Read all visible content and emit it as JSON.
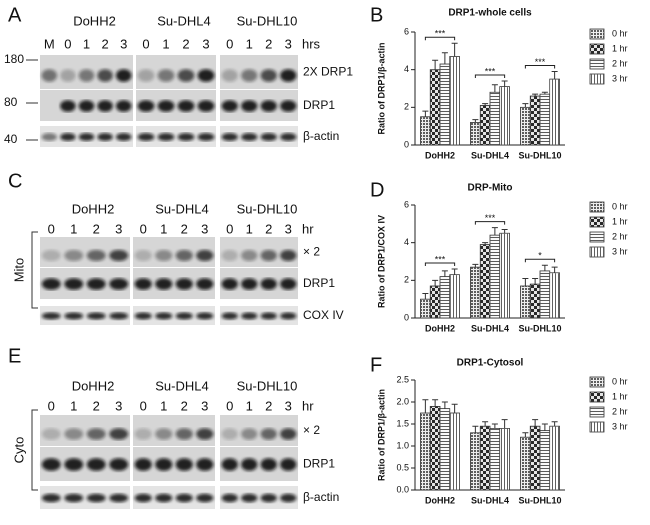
{
  "blots": [
    {
      "label": "A",
      "cell_lines": [
        "DoHH2",
        "Su-DHL4",
        "Su-DHL10"
      ],
      "lanes": [
        [
          "M",
          "0",
          "1",
          "2",
          "3"
        ],
        [
          "0",
          "1",
          "2",
          "3"
        ],
        [
          "0",
          "1",
          "2",
          "3"
        ]
      ],
      "unit": "hrs",
      "markers": [
        "180",
        "80",
        "40"
      ],
      "bands": [
        "2X DRP1",
        "DRP1",
        "β-actin"
      ]
    },
    {
      "label": "C",
      "cell_lines": [
        "DoHH2",
        "Su-DHL4",
        "Su-DHL10"
      ],
      "lanes": [
        [
          "0",
          "1",
          "2",
          "3"
        ],
        [
          "0",
          "1",
          "2",
          "3"
        ],
        [
          "0",
          "1",
          "2",
          "3"
        ]
      ],
      "unit": "hr",
      "fraction": "Mito",
      "bands": [
        "× 2",
        "DRP1",
        "COX IV"
      ]
    },
    {
      "label": "E",
      "cell_lines": [
        "DoHH2",
        "Su-DHL4",
        "Su-DHL10"
      ],
      "lanes": [
        [
          "0",
          "1",
          "2",
          "3"
        ],
        [
          "0",
          "1",
          "2",
          "3"
        ],
        [
          "0",
          "1",
          "2",
          "3"
        ]
      ],
      "unit": "hr",
      "fraction": "Cyto",
      "bands": [
        "× 2",
        "DRP1",
        "β-actin"
      ]
    }
  ],
  "chart_data": [
    {
      "label": "B",
      "type": "bar",
      "title": "DRP1-whole cells",
      "y_label": "Ratio of DRP1/β-actin",
      "categories": [
        "DoHH2",
        "Su-DHL4",
        "Su-DHL10"
      ],
      "series": [
        {
          "name": "0 hr",
          "color": "#8c8c8c",
          "values": [
            1.5,
            1.2,
            2.0
          ],
          "errors": [
            0.3,
            0.15,
            0.2
          ]
        },
        {
          "name": "1 hr",
          "color": "#4d4d4d",
          "values": [
            4.0,
            2.1,
            2.6
          ],
          "errors": [
            0.5,
            0.1,
            0.1
          ]
        },
        {
          "name": "2 hr",
          "color": "#d9d9d9",
          "values": [
            4.3,
            2.8,
            2.7
          ],
          "errors": [
            0.6,
            0.4,
            0.1
          ]
        },
        {
          "name": "3 hr",
          "color": "#ffffff",
          "values": [
            4.7,
            3.1,
            3.5
          ],
          "errors": [
            0.7,
            0.3,
            0.4
          ]
        }
      ],
      "significance": [
        "***",
        "***",
        "***"
      ],
      "ylim": [
        0,
        6
      ],
      "yticks": [
        0,
        2,
        4,
        6
      ]
    },
    {
      "label": "D",
      "type": "bar",
      "title": "DRP-Mito",
      "y_label": "Ratio of DRP1/COX IV",
      "categories": [
        "DoHH2",
        "Su-DHL4",
        "Su-DHL10"
      ],
      "series": [
        {
          "name": "0 hr",
          "color": "#8c8c8c",
          "values": [
            1.0,
            2.7,
            1.7
          ],
          "errors": [
            0.3,
            0.15,
            0.4
          ]
        },
        {
          "name": "1 hr",
          "color": "#4d4d4d",
          "values": [
            1.7,
            3.9,
            1.8
          ],
          "errors": [
            0.3,
            0.1,
            0.3
          ]
        },
        {
          "name": "2 hr",
          "color": "#d9d9d9",
          "values": [
            2.2,
            4.4,
            2.5
          ],
          "errors": [
            0.3,
            0.4,
            0.3
          ]
        },
        {
          "name": "3 hr",
          "color": "#ffffff",
          "values": [
            2.3,
            4.5,
            2.4
          ],
          "errors": [
            0.3,
            0.2,
            0.3
          ]
        }
      ],
      "significance": [
        "***",
        "***",
        "*"
      ],
      "ylim": [
        0,
        6
      ],
      "yticks": [
        0,
        2,
        4,
        6
      ]
    },
    {
      "label": "F",
      "type": "bar",
      "title": "DRP1-Cytosol",
      "y_label": "Ratio of DRP1/β-actin",
      "categories": [
        "DoHH2",
        "Su-DHL4",
        "Su-DHL10"
      ],
      "series": [
        {
          "name": "0 hr",
          "color": "#8c8c8c",
          "values": [
            1.75,
            1.3,
            1.2
          ],
          "errors": [
            0.3,
            0.15,
            0.1
          ]
        },
        {
          "name": "1 hr",
          "color": "#4d4d4d",
          "values": [
            1.9,
            1.45,
            1.45
          ],
          "errors": [
            0.15,
            0.1,
            0.15
          ]
        },
        {
          "name": "2 hr",
          "color": "#d9d9d9",
          "values": [
            1.85,
            1.4,
            1.35
          ],
          "errors": [
            0.15,
            0.1,
            0.15
          ]
        },
        {
          "name": "3 hr",
          "color": "#ffffff",
          "values": [
            1.75,
            1.4,
            1.45
          ],
          "errors": [
            0.2,
            0.2,
            0.1
          ]
        }
      ],
      "ylim": [
        0,
        2.5
      ],
      "yticks": [
        {
          "value": 0,
          "label": "0.0"
        },
        {
          "value": 0.5,
          "label": "0.5"
        },
        {
          "value": 1.0,
          "label": "1.0"
        },
        {
          "value": 1.5,
          "label": "1.5"
        },
        {
          "value": 2.0,
          "label": "2.0"
        },
        {
          "value": 2.5,
          "label": "2.5"
        }
      ]
    }
  ]
}
